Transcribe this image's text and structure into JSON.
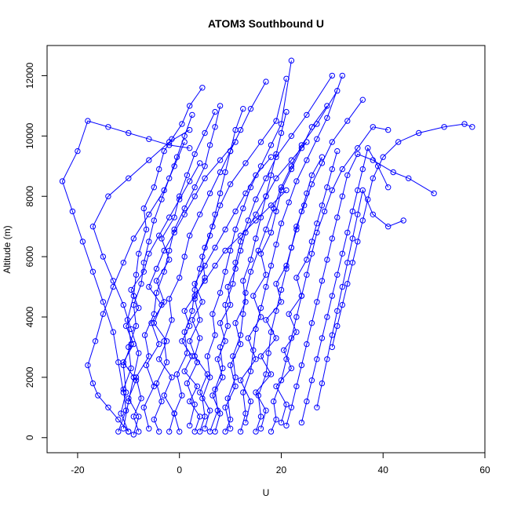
{
  "chart_data": {
    "type": "line",
    "title": "ATOM3 Southbound U",
    "xlabel": "U",
    "ylabel": "Altitude (m)",
    "xlim": [
      -26,
      60
    ],
    "ylim": [
      -500,
      13000
    ],
    "xticks": [
      -20,
      0,
      20,
      40,
      60
    ],
    "yticks": [
      0,
      2000,
      4000,
      6000,
      8000,
      10000,
      12000
    ],
    "grid": false,
    "legend": "none",
    "marker": "open-circle",
    "color": "#0000ff",
    "series": [
      {
        "x": [
          -10,
          -11.5,
          -10.5,
          -11,
          -9.5,
          -10.2,
          -9,
          -8.5,
          -8,
          -6.5,
          -7,
          -5,
          -4,
          -3,
          -1.5,
          0.5,
          2,
          4.5
        ],
        "y": [
          200,
          800,
          1500,
          2400,
          3100,
          3900,
          4700,
          5400,
          6100,
          6900,
          7600,
          8300,
          8900,
          9500,
          9900,
          10400,
          11000,
          11600
        ]
      },
      {
        "x": [
          -8,
          -9,
          -7.5,
          -8.5,
          -6,
          -6.8,
          -5,
          -4.5,
          -3,
          -2,
          -1,
          1,
          3,
          5,
          6,
          7,
          8
        ],
        "y": [
          200,
          700,
          1300,
          2000,
          2700,
          3400,
          4100,
          4800,
          5500,
          6200,
          6900,
          7600,
          8300,
          9000,
          9700,
          10300,
          11000
        ]
      },
      {
        "x": [
          -12,
          -10.5,
          -11,
          -9.5,
          -10,
          -8.5,
          -9,
          -7.5,
          -7,
          -6,
          -5,
          -3.5,
          -2,
          -0.5,
          1,
          2.5
        ],
        "y": [
          200,
          900,
          1600,
          2300,
          3000,
          3700,
          4400,
          5100,
          5800,
          6500,
          7200,
          7900,
          8600,
          9300,
          10000,
          10700
        ]
      },
      {
        "x": [
          -4,
          -5,
          -3.5,
          -4.5,
          -2.5,
          -3,
          -1.5,
          -2,
          0,
          1,
          2,
          4,
          6,
          8,
          10,
          12,
          14,
          17
        ],
        "y": [
          200,
          600,
          1200,
          1800,
          2500,
          3200,
          3900,
          4600,
          5300,
          6000,
          6700,
          7400,
          8100,
          8800,
          9500,
          10200,
          10900,
          11800
        ]
      },
      {
        "x": [
          0,
          -1,
          0.5,
          -0.5,
          1.5,
          1,
          2.5,
          3,
          4,
          5,
          6.5,
          8,
          10,
          13,
          16,
          19,
          21
        ],
        "y": [
          200,
          800,
          1400,
          2100,
          2800,
          3500,
          4200,
          4900,
          5600,
          6300,
          7000,
          7700,
          8400,
          9100,
          9800,
          10500,
          11900
        ]
      },
      {
        "x": [
          4,
          5,
          4.5,
          6,
          5.5,
          7,
          6.5,
          8,
          9,
          10,
          11,
          12.5,
          14,
          16,
          18,
          20,
          22
        ],
        "y": [
          200,
          700,
          1300,
          2000,
          2700,
          3400,
          4100,
          4800,
          5500,
          6200,
          6900,
          7600,
          8300,
          9000,
          9700,
          10400,
          12500
        ]
      },
      {
        "x": [
          6,
          7.5,
          7,
          8.5,
          8,
          9.5,
          9,
          10.5,
          11,
          12,
          13.5,
          15,
          17,
          19,
          22,
          25,
          30
        ],
        "y": [
          200,
          900,
          1600,
          2300,
          3000,
          3700,
          4400,
          5100,
          5800,
          6500,
          7200,
          7900,
          8600,
          9300,
          10000,
          10700,
          12000
        ]
      },
      {
        "x": [
          9,
          10,
          9.5,
          11,
          10.5,
          12,
          12.5,
          13,
          14,
          15.5,
          17,
          18.5,
          20,
          22,
          24,
          27,
          31
        ],
        "y": [
          200,
          600,
          1300,
          2000,
          2700,
          3400,
          4100,
          4800,
          5500,
          6200,
          6900,
          7600,
          8300,
          9000,
          9700,
          10400,
          11500
        ]
      },
      {
        "x": [
          12,
          13,
          12.5,
          14,
          14.5,
          15,
          16,
          17,
          18,
          19,
          20,
          21.5,
          23,
          25,
          27,
          29,
          32
        ],
        "y": [
          200,
          800,
          1500,
          2200,
          2900,
          3600,
          4300,
          5000,
          5700,
          6400,
          7100,
          7800,
          8500,
          9200,
          9900,
          10600,
          12000
        ]
      },
      {
        "x": [
          15,
          16,
          15.5,
          17,
          17.5,
          18,
          19,
          20,
          21,
          22,
          23,
          24.5,
          26,
          28,
          30,
          33,
          36
        ],
        "y": [
          200,
          700,
          1400,
          2100,
          2800,
          3500,
          4200,
          4900,
          5600,
          6300,
          7000,
          7700,
          8400,
          9100,
          9800,
          10500,
          11200
        ]
      },
      {
        "x": [
          18,
          19,
          18.5,
          20,
          21,
          22,
          23,
          24,
          25,
          26,
          27,
          28.5,
          30,
          32,
          35,
          38,
          41
        ],
        "y": [
          200,
          600,
          1200,
          1900,
          2600,
          3300,
          4000,
          4700,
          5400,
          6100,
          6800,
          7500,
          8200,
          8900,
          9600,
          10300,
          10200
        ]
      },
      {
        "x": [
          21,
          22,
          23,
          24,
          25,
          26,
          27,
          28,
          29,
          30,
          31,
          32,
          33,
          35,
          38,
          42,
          45,
          50
        ],
        "y": [
          400,
          1000,
          1700,
          2400,
          3100,
          3800,
          4500,
          5200,
          5900,
          6600,
          7300,
          8000,
          8700,
          9400,
          9200,
          8800,
          8600,
          8100
        ]
      },
      {
        "x": [
          24,
          25,
          26,
          27,
          28,
          29,
          30,
          31,
          32,
          33,
          34,
          35,
          36,
          37,
          39,
          41
        ],
        "y": [
          500,
          1200,
          1900,
          2600,
          3300,
          4000,
          4700,
          5400,
          6100,
          6800,
          7500,
          8200,
          8900,
          9600,
          9000,
          8300
        ]
      },
      {
        "x": [
          27,
          28,
          29,
          30,
          31,
          32,
          33,
          34,
          35,
          36,
          38,
          41,
          44
        ],
        "y": [
          1000,
          1800,
          2600,
          3400,
          4200,
          5000,
          5800,
          6600,
          7400,
          8200,
          7400,
          7000,
          7200
        ]
      },
      {
        "x": [
          30,
          31,
          32,
          33,
          34,
          35,
          36,
          37,
          38,
          40,
          43,
          47,
          52,
          56,
          57.5
        ],
        "y": [
          3000,
          3700,
          4400,
          5100,
          5800,
          6500,
          7200,
          7900,
          8600,
          9300,
          9800,
          10100,
          10300,
          10400,
          10300
        ]
      },
      {
        "x": [
          -10,
          -12,
          -14,
          -16,
          -17,
          -18,
          -16.5,
          -15,
          -13,
          -11,
          -9,
          -6,
          -3,
          -1,
          1
        ],
        "y": [
          200,
          600,
          1000,
          1400,
          1800,
          2400,
          3200,
          4100,
          5000,
          5800,
          6600,
          7400,
          8200,
          9000,
          9800
        ]
      },
      {
        "x": [
          -11,
          -12,
          -13,
          -15,
          -17,
          -19,
          -21,
          -23,
          -20,
          -18,
          -14,
          -10,
          -6,
          -2,
          2
        ],
        "y": [
          1500,
          2500,
          3500,
          4500,
          5500,
          6500,
          7500,
          8500,
          9500,
          10500,
          10300,
          10100,
          9900,
          9700,
          9600
        ]
      },
      {
        "x": [
          -11,
          -10,
          -9,
          -8,
          -9.5,
          -11,
          -13,
          -15,
          -17,
          -14,
          -10,
          -6,
          -2,
          2
        ],
        "y": [
          300,
          1200,
          2000,
          2800,
          3600,
          4400,
          5200,
          6000,
          7000,
          8000,
          8600,
          9200,
          9800,
          10200
        ]
      },
      {
        "x": [
          5,
          6,
          4,
          5.5,
          3,
          4,
          2.5,
          4.5,
          3,
          5,
          7,
          9,
          11,
          13,
          15,
          18
        ],
        "y": [
          300,
          900,
          1500,
          2100,
          2700,
          3300,
          3900,
          4500,
          5100,
          5700,
          6300,
          6900,
          7500,
          8100,
          8700,
          9300
        ]
      },
      {
        "x": [
          10,
          9,
          11,
          10,
          12,
          11,
          13,
          12.5,
          14,
          15,
          16,
          17,
          18,
          19,
          20,
          21
        ],
        "y": [
          300,
          1000,
          1700,
          2400,
          3100,
          3800,
          4500,
          5200,
          5900,
          6600,
          7300,
          8000,
          8700,
          9400,
          10100,
          10800
        ]
      },
      {
        "x": [
          2,
          3,
          1.5,
          3.5,
          2,
          4,
          3,
          5,
          4.5,
          6,
          7,
          8,
          9,
          10,
          11,
          12.5
        ],
        "y": [
          400,
          1100,
          1800,
          2500,
          3200,
          3900,
          4600,
          5300,
          6000,
          6700,
          7400,
          8100,
          8800,
          9500,
          10200,
          10900
        ]
      },
      {
        "x": [
          16,
          17,
          15,
          18,
          16,
          19,
          17,
          20,
          19,
          21,
          22,
          23,
          24,
          25,
          26,
          28
        ],
        "y": [
          300,
          900,
          1500,
          2100,
          2700,
          3300,
          3900,
          4500,
          5100,
          5700,
          6300,
          6900,
          7500,
          8100,
          8700,
          9300
        ]
      },
      {
        "x": [
          -6,
          -7,
          -5,
          -6.5,
          -4,
          -5.5,
          -3,
          -4.5,
          -2,
          -3.5,
          -1,
          0,
          1.5,
          3,
          5,
          7
        ],
        "y": [
          300,
          1000,
          1700,
          2400,
          3100,
          3800,
          4500,
          5200,
          5900,
          6600,
          7300,
          8000,
          8700,
          9400,
          10100,
          10800
        ]
      },
      {
        "x": [
          13,
          14,
          12,
          15,
          13.5,
          16,
          14.5,
          17,
          16,
          18,
          19,
          20,
          22,
          24,
          26,
          29
        ],
        "y": [
          500,
          1200,
          1900,
          2600,
          3300,
          4000,
          4700,
          5400,
          6100,
          6800,
          7500,
          8200,
          8900,
          9600,
          10300,
          11000
        ]
      },
      {
        "x": [
          -9,
          -8,
          -10,
          -8.5,
          -11,
          -9,
          -10.5,
          -8,
          -9.5,
          -7,
          -6,
          -4,
          -2,
          0,
          2,
          4
        ],
        "y": [
          100,
          700,
          1300,
          1900,
          2500,
          3100,
          3700,
          4300,
          4900,
          5500,
          6100,
          6700,
          7300,
          7900,
          8500,
          9100
        ]
      },
      {
        "x": [
          7,
          8,
          6.5,
          8.5,
          7.5,
          9,
          8,
          10,
          9.5,
          11,
          12,
          13,
          15,
          17,
          19,
          22,
          25
        ],
        "y": [
          200,
          800,
          1400,
          2000,
          2600,
          3200,
          3800,
          4400,
          5000,
          5600,
          6200,
          6800,
          7400,
          8000,
          8600,
          9200,
          9800
        ]
      },
      {
        "x": [
          20,
          21,
          19,
          22,
          20.5,
          23,
          21.5,
          24,
          23,
          25,
          26,
          27,
          28,
          29,
          30,
          31
        ],
        "y": [
          500,
          1100,
          1700,
          2300,
          2900,
          3500,
          4100,
          4700,
          5300,
          5900,
          6500,
          7100,
          7700,
          8300,
          8900,
          9500
        ]
      },
      {
        "x": [
          3,
          4,
          2,
          3.5,
          1,
          2.5,
          0.5,
          2,
          1,
          3,
          5,
          7,
          9,
          12,
          15,
          18,
          21
        ],
        "y": [
          200,
          700,
          1200,
          1700,
          2200,
          2700,
          3200,
          3700,
          4200,
          4700,
          5200,
          5700,
          6200,
          6700,
          7200,
          7700,
          8200
        ]
      },
      {
        "x": [
          -2,
          -1,
          -3,
          -1.5,
          -4,
          -2.5,
          -5,
          -3.5,
          -6,
          -4.5,
          -3,
          -1,
          1,
          3,
          5,
          8,
          11
        ],
        "y": [
          200,
          800,
          1400,
          2000,
          2600,
          3200,
          3800,
          4400,
          5000,
          5600,
          6200,
          6800,
          7400,
          8000,
          8600,
          9200,
          9800
        ]
      }
    ]
  }
}
